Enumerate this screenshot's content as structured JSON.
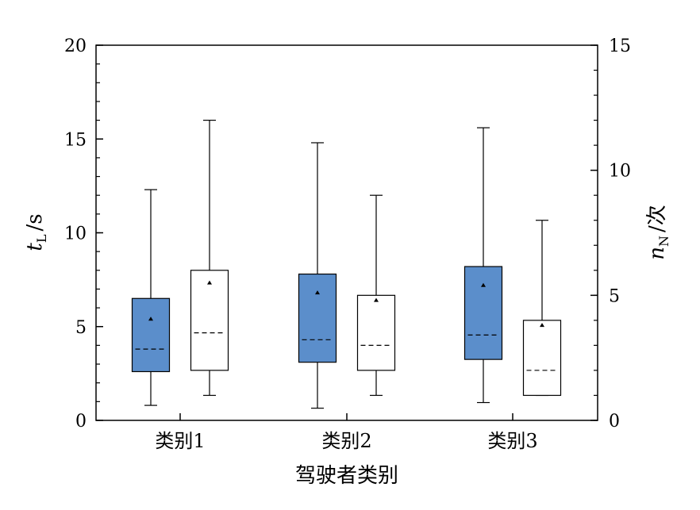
{
  "chart_data": {
    "type": "box",
    "categories": [
      "类别1",
      "类别2",
      "类别3"
    ],
    "xlabel": "驾驶者类别",
    "y_left": {
      "label_var": "t",
      "label_sub": "L",
      "label_unit": "/s",
      "lim": [
        0,
        20
      ],
      "ticks": [
        0,
        5,
        10,
        15,
        20
      ]
    },
    "y_right": {
      "label_var": "n",
      "label_sub": "N",
      "label_unit": "/次",
      "lim": [
        0,
        15
      ],
      "ticks": [
        0,
        5,
        10,
        15
      ]
    },
    "series": [
      {
        "axis": "left",
        "fill": "#5b8ecb",
        "boxes": [
          {
            "category": "类别1",
            "min": 0.8,
            "q1": 2.6,
            "median": 3.8,
            "q3": 6.5,
            "max": 12.3,
            "mean": 5.4
          },
          {
            "category": "类别2",
            "min": 0.65,
            "q1": 3.1,
            "median": 4.3,
            "q3": 7.8,
            "max": 14.8,
            "mean": 6.8
          },
          {
            "category": "类别3",
            "min": 0.95,
            "q1": 3.25,
            "median": 4.55,
            "q3": 8.2,
            "max": 15.6,
            "mean": 7.2
          }
        ]
      },
      {
        "axis": "right",
        "fill": "#ffffff",
        "boxes": [
          {
            "category": "类别1",
            "min": 1.0,
            "q1": 2.0,
            "median": 3.5,
            "q3": 6.0,
            "max": 12.0,
            "mean": 5.5
          },
          {
            "category": "类别2",
            "min": 1.0,
            "q1": 2.0,
            "median": 3.0,
            "q3": 5.0,
            "max": 9.0,
            "mean": 4.8
          },
          {
            "category": "类别3",
            "min": 1.0,
            "q1": 1.0,
            "median": 2.0,
            "q3": 4.0,
            "max": 8.0,
            "mean": 3.8
          }
        ]
      }
    ],
    "grid": false,
    "legend": "none"
  }
}
